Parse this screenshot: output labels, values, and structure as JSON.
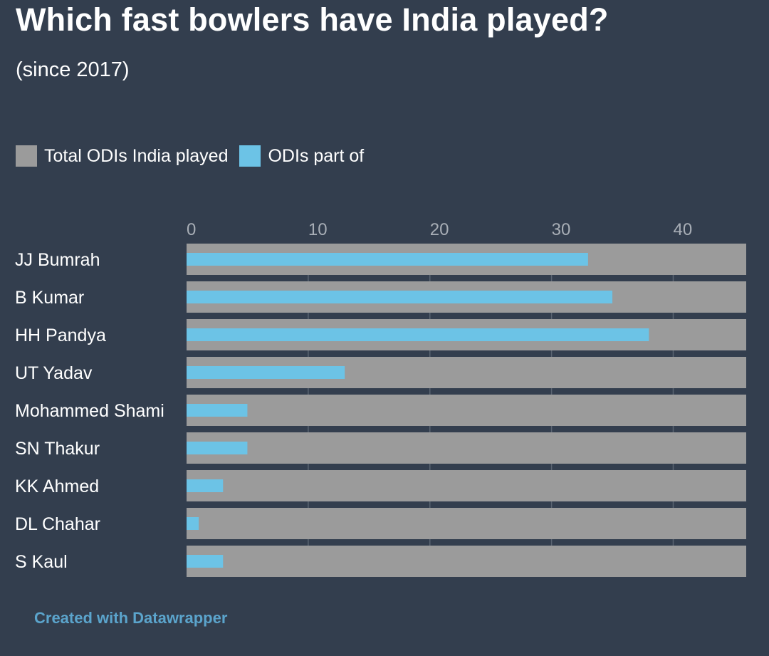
{
  "title": "Which fast bowlers have India played?",
  "subtitle": "(since 2017)",
  "footer": "Created with Datawrapper",
  "colors": {
    "background": "#333e4e",
    "total": "#9b9b9b",
    "part": "#6cc3e6",
    "footer": "#5ba4cc"
  },
  "chart_data": {
    "type": "bar",
    "orientation": "horizontal",
    "title": "Which fast bowlers have India played?",
    "subtitle": "(since 2017)",
    "categories": [
      "JJ Bumrah",
      "B Kumar",
      "HH Pandya",
      "UT Yadav",
      "Mohammed Shami",
      "SN Thakur",
      "KK Ahmed",
      "DL Chahar",
      "S Kaul"
    ],
    "series": [
      {
        "name": "Total ODIs India played",
        "color": "#9b9b9b",
        "values": [
          46,
          46,
          46,
          46,
          46,
          46,
          46,
          46,
          46
        ]
      },
      {
        "name": "ODIs part of",
        "color": "#6cc3e6",
        "values": [
          33,
          35,
          38,
          13,
          5,
          5,
          3,
          1,
          3
        ]
      }
    ],
    "xticks": [
      "0",
      "10",
      "20",
      "30",
      "40"
    ],
    "xlim": [
      0,
      46
    ],
    "legend": "top-left",
    "grid": true
  }
}
